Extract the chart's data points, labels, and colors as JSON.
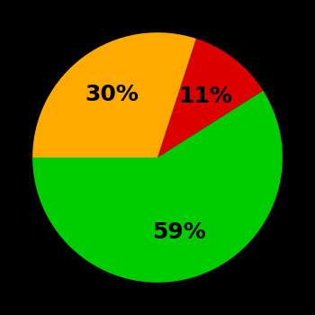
{
  "slices": [
    59,
    11,
    30
  ],
  "colors": [
    "#00cc00",
    "#dd0000",
    "#ffaa00"
  ],
  "labels": [
    "59%",
    "11%",
    "30%"
  ],
  "background_color": "#000000",
  "text_color": "#000000",
  "font_size": 18,
  "font_weight": "bold",
  "startangle": 180,
  "figsize": [
    3.5,
    3.5
  ],
  "dpi": 100
}
